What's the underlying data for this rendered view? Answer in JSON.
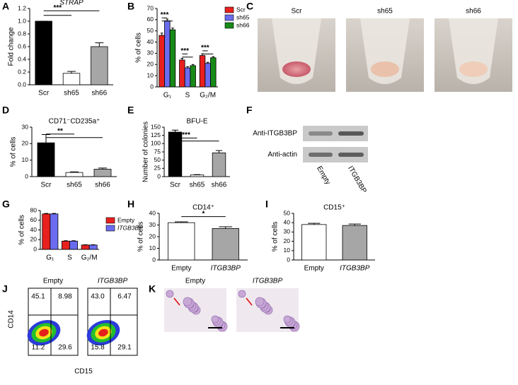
{
  "chart_data": [
    {
      "type": "bar",
      "panel": "A",
      "title": "STRAP",
      "ylabel": "Fold change",
      "categories": [
        "Scr",
        "sh65",
        "sh66"
      ],
      "values": [
        1.0,
        0.18,
        0.6
      ],
      "errors": [
        0,
        0.03,
        0.06
      ],
      "colors": [
        "#000000",
        "#ffffff",
        "#a6a6a6"
      ],
      "ylim": [
        0,
        1.2
      ],
      "yticks": [
        {
          "value": 0,
          "label": "0.0"
        },
        0.2,
        0.4,
        0.6,
        0.8,
        {
          "value": 1,
          "label": "1.0"
        },
        1.2
      ],
      "annotations": [
        "***"
      ]
    },
    {
      "type": "bar",
      "panel": "B",
      "ylabel": "% of cells",
      "categories": [
        "G₁",
        "S",
        "G₂/M"
      ],
      "series": [
        {
          "name": "Scr",
          "color": "#e8201e",
          "values": [
            46,
            24,
            28
          ],
          "errors": [
            2,
            1.5,
            1.5
          ]
        },
        {
          "name": "sh65",
          "color": "#6b6bf0",
          "values": [
            59,
            17,
            21
          ],
          "errors": [
            1.5,
            1,
            1
          ]
        },
        {
          "name": "sh66",
          "color": "#178a17",
          "values": [
            51,
            19,
            26
          ],
          "errors": [
            1.5,
            1,
            1
          ]
        }
      ],
      "ylim": [
        0,
        70
      ],
      "yticks": [
        0,
        10,
        20,
        30,
        40,
        50,
        60,
        70
      ],
      "legend": "upper right",
      "annotations": [
        "***",
        "***",
        "***"
      ]
    },
    {
      "type": "bar",
      "panel": "D",
      "title": "CD71⁻CD235a⁺",
      "ylabel": "% of cells",
      "categories": [
        "Scr",
        "sh65",
        "sh66"
      ],
      "values": [
        20.5,
        2.5,
        4.5
      ],
      "errors": [
        5,
        0.4,
        0.7
      ],
      "colors": [
        "#000000",
        "#ffffff",
        "#a6a6a6"
      ],
      "ylim": [
        0,
        30
      ],
      "yticks": [
        0,
        10,
        20,
        30
      ],
      "annotations": [
        "**"
      ]
    },
    {
      "type": "bar",
      "panel": "E",
      "title": "BFU-E",
      "ylabel": "Number of colonies",
      "categories": [
        "Scr",
        "sh65",
        "sh66"
      ],
      "values": [
        135,
        5,
        72
      ],
      "errors": [
        6,
        1,
        7
      ],
      "colors": [
        "#000000",
        "#ffffff",
        "#a6a6a6"
      ],
      "ylim": [
        0,
        150
      ],
      "yticks": [
        0,
        25,
        50,
        75,
        100,
        125,
        150
      ],
      "annotations": [
        "***"
      ]
    },
    {
      "type": "bar",
      "panel": "G",
      "ylabel": "% of cells",
      "categories": [
        "G₁",
        "S",
        "G₂/M"
      ],
      "series": [
        {
          "name": "Empty",
          "color": "#e8201e",
          "values": [
            73,
            17,
            9
          ],
          "errors": [
            1,
            0.8,
            0.5
          ]
        },
        {
          "name": "ITGB3BP",
          "color": "#6b6bf0",
          "values": [
            73,
            17,
            9
          ],
          "errors": [
            1,
            0.8,
            0.5
          ]
        }
      ],
      "ylim": [
        0,
        80
      ],
      "yticks": [
        0,
        20,
        40,
        60,
        80
      ],
      "legend": "upper right"
    },
    {
      "type": "bar",
      "panel": "H",
      "title": "CD14⁺",
      "ylabel": "% of cells",
      "categories": [
        "Empty",
        "ITGB3BP"
      ],
      "values": [
        32,
        27
      ],
      "errors": [
        0.7,
        1.5
      ],
      "colors": [
        "#ffffff",
        "#a6a6a6"
      ],
      "ylim": [
        0,
        40
      ],
      "yticks": [
        0,
        10,
        20,
        30,
        40
      ],
      "annotations": [
        "*"
      ]
    },
    {
      "type": "bar",
      "panel": "I",
      "title": "CD15⁺",
      "ylabel": "% of cells",
      "categories": [
        "Empty",
        "ITGB3BP"
      ],
      "values": [
        38,
        37
      ],
      "errors": [
        1.3,
        1.5
      ],
      "colors": [
        "#ffffff",
        "#a6a6a6"
      ],
      "ylim": [
        0,
        50
      ],
      "yticks": [
        0,
        10,
        20,
        30,
        40,
        50
      ]
    }
  ],
  "photos": {
    "panel": "C",
    "labels": [
      "Scr",
      "sh65",
      "sh66"
    ]
  },
  "blot": {
    "panel": "F",
    "rows": [
      "Anti-ITGB3BP",
      "Anti-actin"
    ],
    "lanes": [
      "Empty",
      "ITGB3BP"
    ]
  },
  "flow": {
    "panel": "J",
    "y_label": "CD14",
    "x_label": "CD15",
    "plots": [
      {
        "title": "Empty",
        "quadrants": [
          "45.1",
          "8.98",
          "11.2",
          "29.6"
        ]
      },
      {
        "title": "ITGB3BP",
        "quadrants": [
          "43.0",
          "6.47",
          "15.8",
          "29.1"
        ]
      }
    ]
  },
  "micrographs": {
    "panel": "K",
    "titles": [
      "Empty",
      "ITGB3BP"
    ]
  }
}
